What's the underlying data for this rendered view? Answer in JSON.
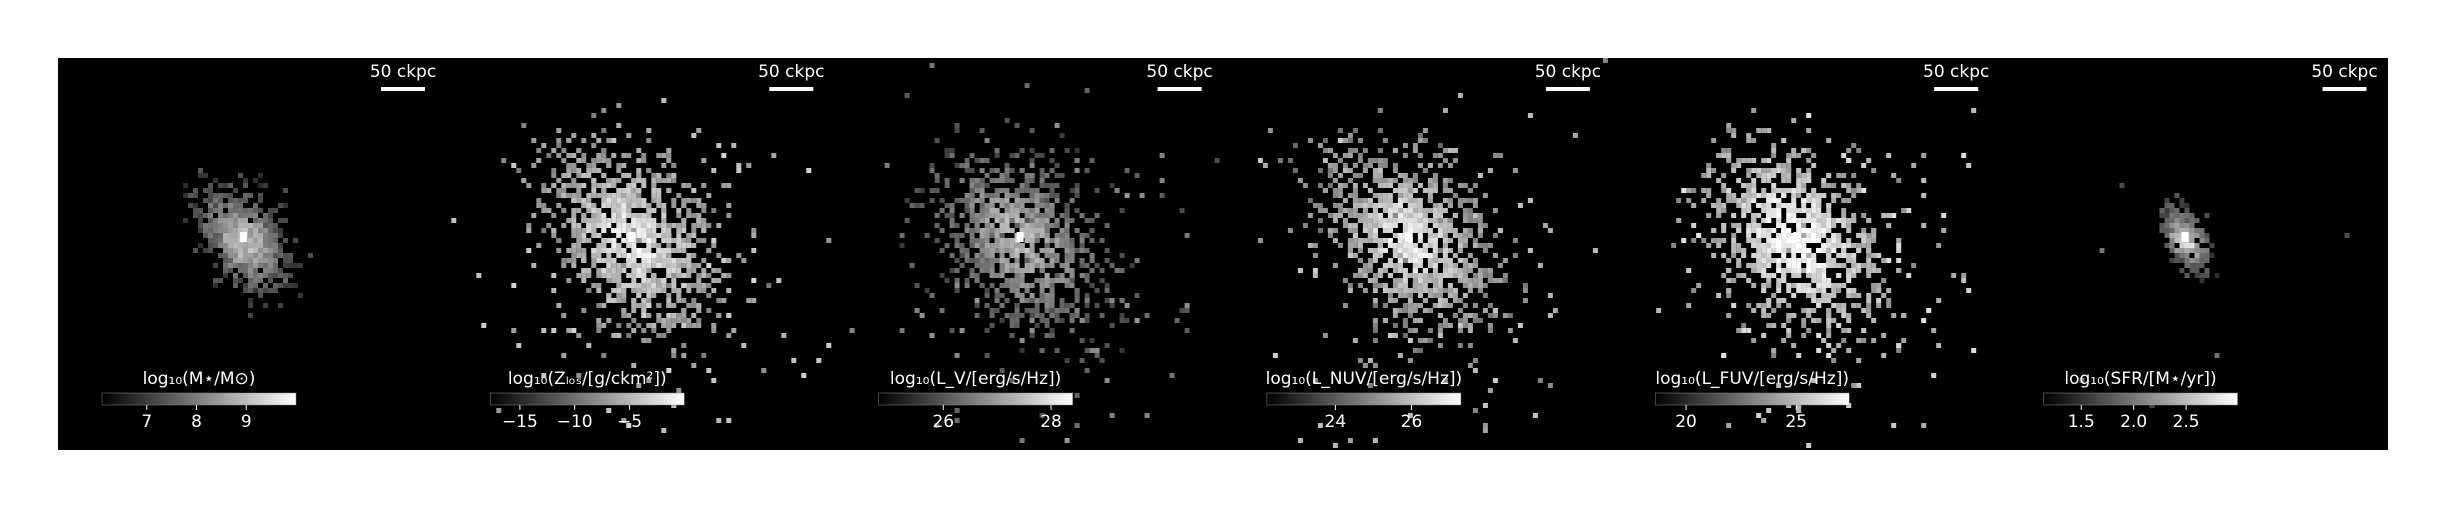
{
  "chart_data": [
    {
      "type": "image",
      "scale_bar_label": "50 ckpc",
      "colorbar_label": "log₁₀(M⋆/M⊙)",
      "clim": [
        6.1,
        10.0
      ],
      "cticks": [
        7,
        8,
        9
      ]
    },
    {
      "type": "image",
      "scale_bar_label": "50 ckpc",
      "colorbar_label": "log₁₀(Zₗₒₛ/[g/ckm²])",
      "clim": [
        -17.7,
        0
      ],
      "cticks": [
        {
          "value": -15,
          "label": "−15"
        },
        {
          "value": -10,
          "label": "−10"
        },
        {
          "value": -5,
          "label": "−5"
        }
      ]
    },
    {
      "type": "image",
      "scale_bar_label": "50 ckpc",
      "colorbar_label": "log₁₀(L_V/[erg/s/Hz])",
      "clim": [
        24.8,
        28.4
      ],
      "cticks": [
        26,
        28
      ]
    },
    {
      "type": "image",
      "scale_bar_label": "50 ckpc",
      "colorbar_label": "log₁₀(L_NUV/[erg/s/Hz])",
      "clim": [
        22.2,
        27.3
      ],
      "cticks": [
        24,
        26
      ]
    },
    {
      "type": "image",
      "scale_bar_label": "50 ckpc",
      "colorbar_label": "log₁₀(L_FUV/[erg/s/Hz])",
      "clim": [
        18.6,
        27.4
      ],
      "cticks": [
        20,
        25
      ]
    },
    {
      "type": "image",
      "scale_bar_label": "50 ckpc",
      "colorbar_label": "log₁₀(SFR/[M⋆/yr])",
      "clim": [
        1.14,
        2.99
      ],
      "cticks": [
        1.5,
        {
          "value": 2,
          "label": "2.0"
        },
        2.5
      ]
    }
  ]
}
